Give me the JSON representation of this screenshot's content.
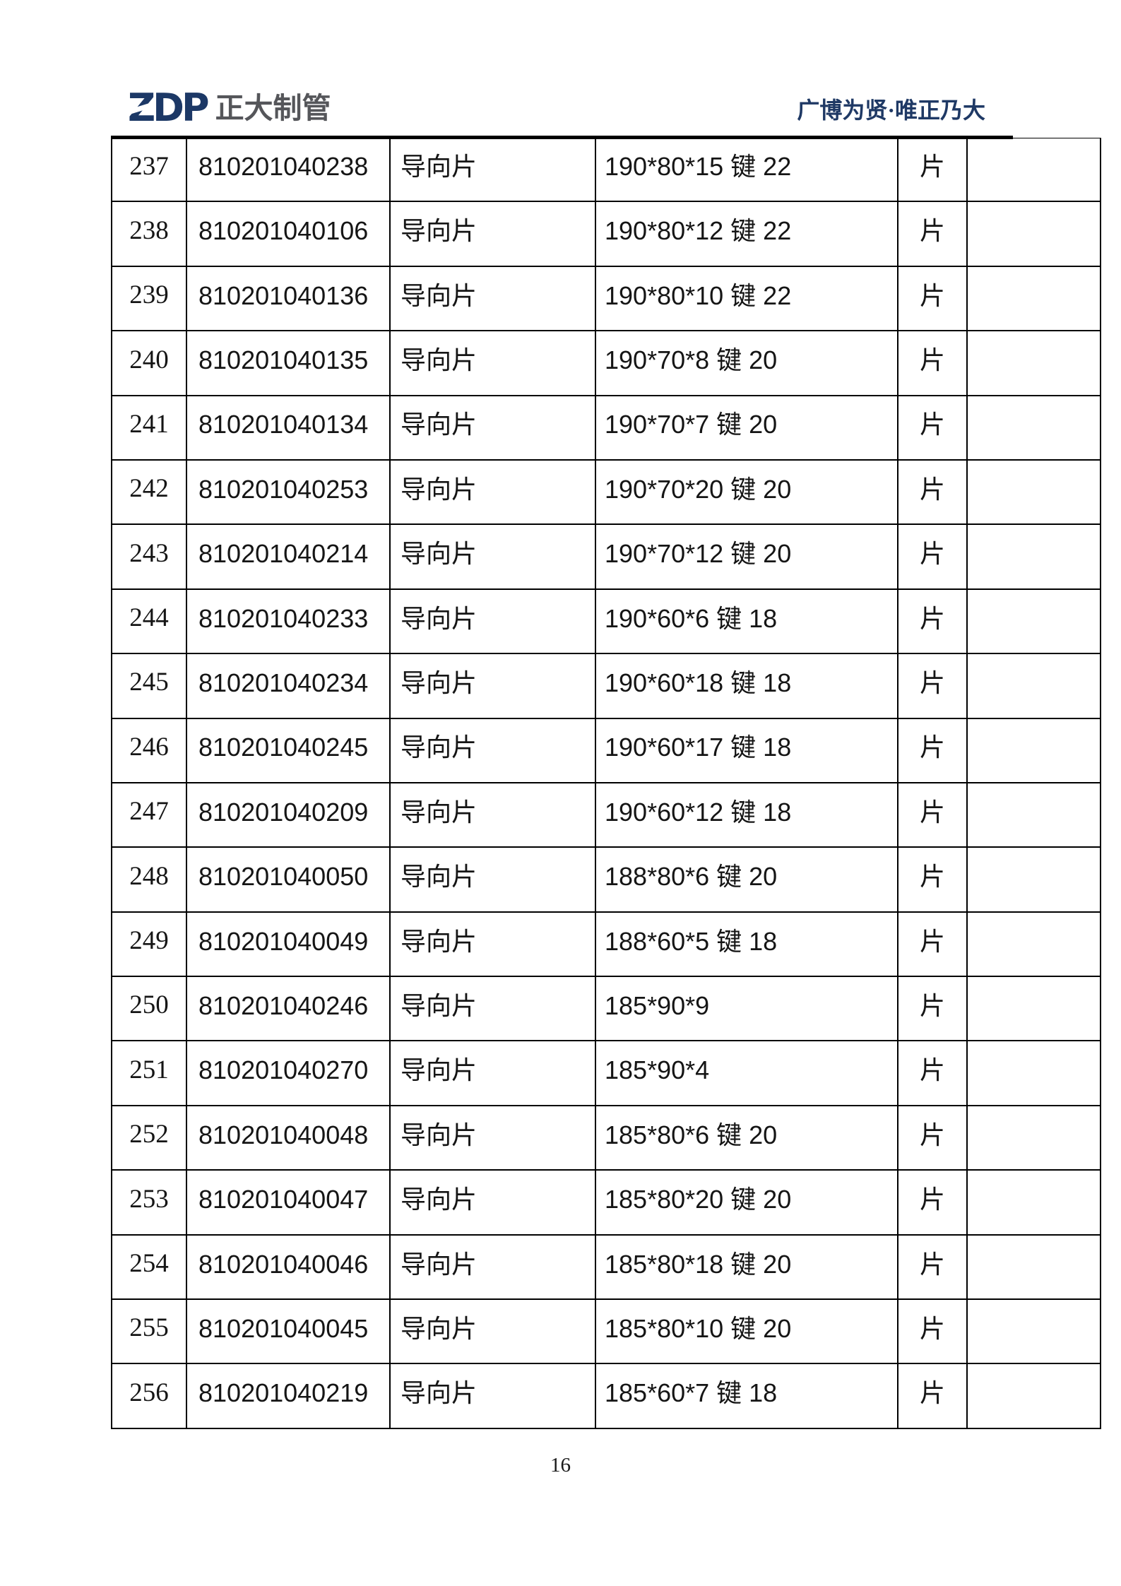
{
  "header": {
    "logo_zdp": "ZDP",
    "logo_company": "正大制管",
    "slogan": "广博为贤·唯正乃大",
    "colors": {
      "logo_navy": "#1c3866",
      "logo_gray": "#55565a",
      "slogan_navy": "#1f3965"
    }
  },
  "table": {
    "rows": [
      {
        "no": "237",
        "code": "810201040238",
        "name": "导向片",
        "spec": "190*80*15 键 22",
        "unit": "片",
        "note": ""
      },
      {
        "no": "238",
        "code": "810201040106",
        "name": "导向片",
        "spec": "190*80*12 键 22",
        "unit": "片",
        "note": ""
      },
      {
        "no": "239",
        "code": "810201040136",
        "name": "导向片",
        "spec": "190*80*10 键 22",
        "unit": "片",
        "note": ""
      },
      {
        "no": "240",
        "code": "810201040135",
        "name": "导向片",
        "spec": "190*70*8 键 20",
        "unit": "片",
        "note": ""
      },
      {
        "no": "241",
        "code": "810201040134",
        "name": "导向片",
        "spec": "190*70*7 键 20",
        "unit": "片",
        "note": ""
      },
      {
        "no": "242",
        "code": "810201040253",
        "name": "导向片",
        "spec": "190*70*20 键 20",
        "unit": "片",
        "note": ""
      },
      {
        "no": "243",
        "code": "810201040214",
        "name": "导向片",
        "spec": "190*70*12 键 20",
        "unit": "片",
        "note": ""
      },
      {
        "no": "244",
        "code": "810201040233",
        "name": "导向片",
        "spec": "190*60*6 键 18",
        "unit": "片",
        "note": ""
      },
      {
        "no": "245",
        "code": "810201040234",
        "name": "导向片",
        "spec": "190*60*18 键 18",
        "unit": "片",
        "note": ""
      },
      {
        "no": "246",
        "code": "810201040245",
        "name": "导向片",
        "spec": "190*60*17 键 18",
        "unit": "片",
        "note": ""
      },
      {
        "no": "247",
        "code": "810201040209",
        "name": "导向片",
        "spec": "190*60*12 键 18",
        "unit": "片",
        "note": ""
      },
      {
        "no": "248",
        "code": "810201040050",
        "name": "导向片",
        "spec": "188*80*6 键 20",
        "unit": "片",
        "note": ""
      },
      {
        "no": "249",
        "code": "810201040049",
        "name": "导向片",
        "spec": "188*60*5 键 18",
        "unit": "片",
        "note": ""
      },
      {
        "no": "250",
        "code": "810201040246",
        "name": "导向片",
        "spec": "185*90*9",
        "unit": "片",
        "note": ""
      },
      {
        "no": "251",
        "code": "810201040270",
        "name": "导向片",
        "spec": "185*90*4",
        "unit": "片",
        "note": ""
      },
      {
        "no": "252",
        "code": "810201040048",
        "name": "导向片",
        "spec": "185*80*6 键 20",
        "unit": "片",
        "note": ""
      },
      {
        "no": "253",
        "code": "810201040047",
        "name": "导向片",
        "spec": "185*80*20 键 20",
        "unit": "片",
        "note": ""
      },
      {
        "no": "254",
        "code": "810201040046",
        "name": "导向片",
        "spec": "185*80*18 键 20",
        "unit": "片",
        "note": ""
      },
      {
        "no": "255",
        "code": "810201040045",
        "name": "导向片",
        "spec": "185*80*10 键 20",
        "unit": "片",
        "note": ""
      },
      {
        "no": "256",
        "code": "810201040219",
        "name": "导向片",
        "spec": "185*60*7 键 18",
        "unit": "片",
        "note": ""
      }
    ]
  },
  "footer": {
    "page_number": "16"
  }
}
